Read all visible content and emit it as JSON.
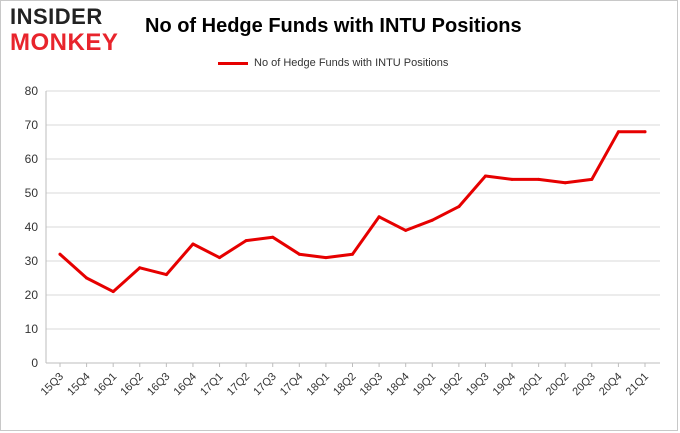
{
  "brand": {
    "line1": "INSIDER",
    "line2": "MONKEY",
    "line1_color": "#222222",
    "line2_color": "#e8242c"
  },
  "chart_data": {
    "type": "line",
    "title": "No of Hedge Funds with INTU Positions",
    "xlabel": "",
    "ylabel": "",
    "categories": [
      "15Q3",
      "15Q4",
      "16Q1",
      "16Q2",
      "16Q3",
      "16Q4",
      "17Q1",
      "17Q2",
      "17Q3",
      "17Q4",
      "18Q1",
      "18Q2",
      "18Q3",
      "18Q4",
      "19Q1",
      "19Q2",
      "19Q3",
      "19Q4",
      "20Q1",
      "20Q2",
      "20Q3",
      "20Q4",
      "21Q1"
    ],
    "series": [
      {
        "name": "No of Hedge Funds with INTU Positions",
        "color": "#e60000",
        "values": [
          32,
          25,
          21,
          28,
          26,
          35,
          31,
          36,
          37,
          32,
          31,
          32,
          43,
          39,
          42,
          46,
          55,
          54,
          54,
          53,
          54,
          68,
          68
        ]
      }
    ],
    "ylim": [
      0,
      80
    ],
    "yticks": [
      0,
      10,
      20,
      30,
      40,
      50,
      60,
      70,
      80
    ],
    "grid": true,
    "legend_position": "top-center"
  }
}
